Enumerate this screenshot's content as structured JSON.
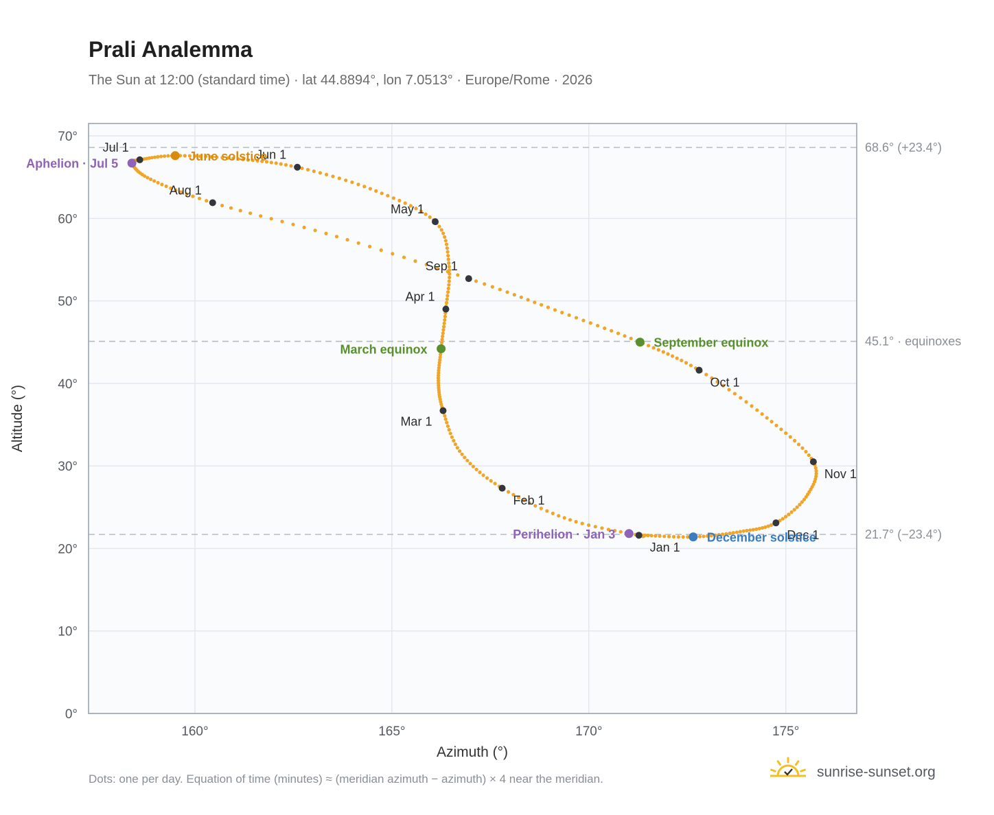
{
  "header": {
    "title": "Prali Analemma",
    "subtitle": "The Sun at 12:00 (standard time) · lat 44.8894°, lon 7.0513° · Europe/Rome · 2026"
  },
  "footer": {
    "note": "Dots: one per day. Equation of time (minutes) ≈ (meridian azimuth − azimuth) × 4 near the meridian.",
    "brand": "sunrise-sunset.org"
  },
  "colors": {
    "curve": "#f0a428",
    "month_marker": "#33373d",
    "equinox": "#5a8f2e",
    "june_solstice": "#d98b0f",
    "december_solstice": "#3d7bbf",
    "apsis": "#8f63b8",
    "plot_bg": "#f9fbfd",
    "grid": "#e3e8ee",
    "frame": "#9aa4b0",
    "ref_line": "#b3bcc6",
    "logo": "#f0c020"
  },
  "chart_data": {
    "type": "scatter",
    "title": "Prali Analemma",
    "subtitle": "The Sun at 12:00 (standard time) · lat 44.8894°, lon 7.0513° · Europe/Rome · 2026",
    "xlabel": "Azimuth (°)",
    "ylabel": "Altitude (°)",
    "xlim": [
      157.3,
      176.8
    ],
    "ylim": [
      0,
      71.5
    ],
    "x_ticks": [
      {
        "value": 160,
        "label": "160°"
      },
      {
        "value": 165,
        "label": "165°"
      },
      {
        "value": 170,
        "label": "170°"
      },
      {
        "value": 175,
        "label": "175°"
      }
    ],
    "y_ticks": [
      {
        "value": 0,
        "label": "0°"
      },
      {
        "value": 10,
        "label": "10°"
      },
      {
        "value": 20,
        "label": "20°"
      },
      {
        "value": 30,
        "label": "30°"
      },
      {
        "value": 40,
        "label": "40°"
      },
      {
        "value": 50,
        "label": "50°"
      },
      {
        "value": 60,
        "label": "60°"
      },
      {
        "value": 70,
        "label": "70°"
      }
    ],
    "grid": true,
    "reference_lines": [
      {
        "altitude": 68.6,
        "label": "68.6° (+23.4°)"
      },
      {
        "altitude": 45.1,
        "label": "45.1° · equinoxes"
      },
      {
        "altitude": 21.7,
        "label": "21.7° (−23.4°)"
      }
    ],
    "curve_points": [
      {
        "date": "Jan 1",
        "az": 171.27,
        "alt": 21.6
      },
      {
        "date": "Jan 15",
        "az": 169.5,
        "alt": 23.5
      },
      {
        "date": "Feb 1",
        "az": 167.8,
        "alt": 27.3
      },
      {
        "date": "Feb 15",
        "az": 166.75,
        "alt": 31.6
      },
      {
        "date": "Mar 1",
        "az": 166.3,
        "alt": 36.7
      },
      {
        "date": "Mar 10",
        "az": 166.18,
        "alt": 40.3
      },
      {
        "date": "Mar 20",
        "az": 166.25,
        "alt": 44.2
      },
      {
        "date": "Apr 1",
        "az": 166.37,
        "alt": 49.0
      },
      {
        "date": "Apr 15",
        "az": 166.45,
        "alt": 54.3
      },
      {
        "date": "May 1",
        "az": 166.1,
        "alt": 59.6
      },
      {
        "date": "May 15",
        "az": 164.5,
        "alt": 63.5
      },
      {
        "date": "Jun 1",
        "az": 162.6,
        "alt": 66.2
      },
      {
        "date": "Jun 10",
        "az": 161.1,
        "alt": 67.2
      },
      {
        "date": "Jun 21",
        "az": 159.5,
        "alt": 67.6
      },
      {
        "date": "Jul 1",
        "az": 158.6,
        "alt": 67.1
      },
      {
        "date": "Jul 5",
        "az": 158.4,
        "alt": 66.7
      },
      {
        "date": "Jul 15",
        "az": 158.85,
        "alt": 64.8
      },
      {
        "date": "Aug 1",
        "az": 160.45,
        "alt": 61.9
      },
      {
        "date": "Aug 15",
        "az": 163.6,
        "alt": 57.8
      },
      {
        "date": "Sep 1",
        "az": 166.95,
        "alt": 52.7
      },
      {
        "date": "Sep 12",
        "az": 169.2,
        "alt": 48.8
      },
      {
        "date": "Sep 23",
        "az": 171.3,
        "alt": 45.0
      },
      {
        "date": "Oct 1",
        "az": 172.8,
        "alt": 41.6
      },
      {
        "date": "Oct 15",
        "az": 174.5,
        "alt": 35.9
      },
      {
        "date": "Nov 1",
        "az": 175.7,
        "alt": 30.5
      },
      {
        "date": "Nov 15",
        "az": 175.55,
        "alt": 26.5
      },
      {
        "date": "Dec 1",
        "az": 174.75,
        "alt": 23.1
      },
      {
        "date": "Dec 10",
        "az": 173.8,
        "alt": 22.0
      },
      {
        "date": "Dec 21",
        "az": 172.65,
        "alt": 21.4
      },
      {
        "date": "Dec 31",
        "az": 171.37,
        "alt": 21.6
      }
    ],
    "month_markers": [
      {
        "label": "Jan 1",
        "az": 171.27,
        "alt": 21.6,
        "pos": "below"
      },
      {
        "label": "Feb 1",
        "az": 167.8,
        "alt": 27.3,
        "pos": "below-right"
      },
      {
        "label": "Mar 1",
        "az": 166.3,
        "alt": 36.7,
        "pos": "below-left"
      },
      {
        "label": "Apr 1",
        "az": 166.37,
        "alt": 49.0,
        "pos": "above-left"
      },
      {
        "label": "May 1",
        "az": 166.1,
        "alt": 59.6,
        "pos": "above-left"
      },
      {
        "label": "Jun 1",
        "az": 162.6,
        "alt": 66.2,
        "pos": "above-left"
      },
      {
        "label": "Jul 1",
        "az": 158.6,
        "alt": 67.1,
        "pos": "above-left"
      },
      {
        "label": "Aug 1",
        "az": 160.45,
        "alt": 61.9,
        "pos": "above-left"
      },
      {
        "label": "Sep 1",
        "az": 166.95,
        "alt": 52.7,
        "pos": "above-left"
      },
      {
        "label": "Oct 1",
        "az": 172.8,
        "alt": 41.6,
        "pos": "below-right"
      },
      {
        "label": "Nov 1",
        "az": 175.7,
        "alt": 30.5,
        "pos": "below-right"
      },
      {
        "label": "Dec 1",
        "az": 174.75,
        "alt": 23.1,
        "pos": "below-right"
      }
    ],
    "events": [
      {
        "label": "June solstice",
        "az": 159.5,
        "alt": 67.6,
        "color_key": "june_solstice",
        "pos": "right"
      },
      {
        "label": "December solstice",
        "az": 172.65,
        "alt": 21.4,
        "color_key": "december_solstice",
        "pos": "right"
      },
      {
        "label": "March equinox",
        "az": 166.25,
        "alt": 44.2,
        "color_key": "equinox",
        "pos": "left"
      },
      {
        "label": "September equinox",
        "az": 171.3,
        "alt": 45.0,
        "color_key": "equinox",
        "pos": "right"
      },
      {
        "label": "Aphelion · Jul 5",
        "az": 158.4,
        "alt": 66.7,
        "color_key": "apsis",
        "pos": "left"
      },
      {
        "label": "Perihelion · Jan 3",
        "az": 171.02,
        "alt": 21.8,
        "color_key": "apsis",
        "pos": "left"
      }
    ]
  }
}
